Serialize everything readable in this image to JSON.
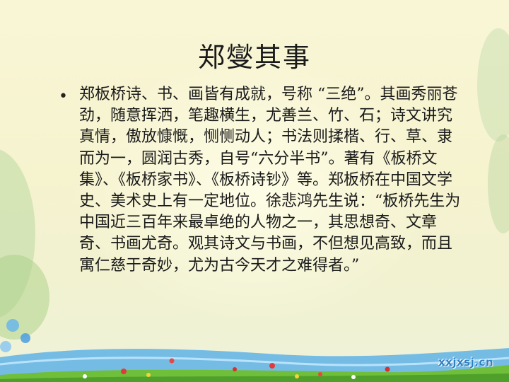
{
  "slide": {
    "title": "郑燮其事",
    "bullet_symbol": "•",
    "body": "郑板桥诗、书、画皆有成就，号称 “三绝”。其画秀丽苍劲，随意挥洒，笔趣横生，尤善兰、竹、石；诗文讲究真情，傲放慷慨，恻恻动人；书法则揉楷、行、草、隶而为一，圆润古秀，自号“六分半书”。著有《板桥文集》、《板桥家书》、《板桥诗钞》等。郑板桥在中国文学史、美术史上有一定地位。徐悲鸿先生说：“板桥先生为中国近三百年来最卓绝的人物之一，其思想奇、文章奇、书画尤奇。观其诗文与书画，不但想见高致，而且寓仁慈于奇妙，尤为古今天才之难得者。”",
    "watermark": "xxjxsj.cn"
  },
  "colors": {
    "background": "#f6f3cf",
    "water": "#5fb3e8",
    "grass": "#6fbf3a",
    "watermark": "#2f7fc1"
  }
}
